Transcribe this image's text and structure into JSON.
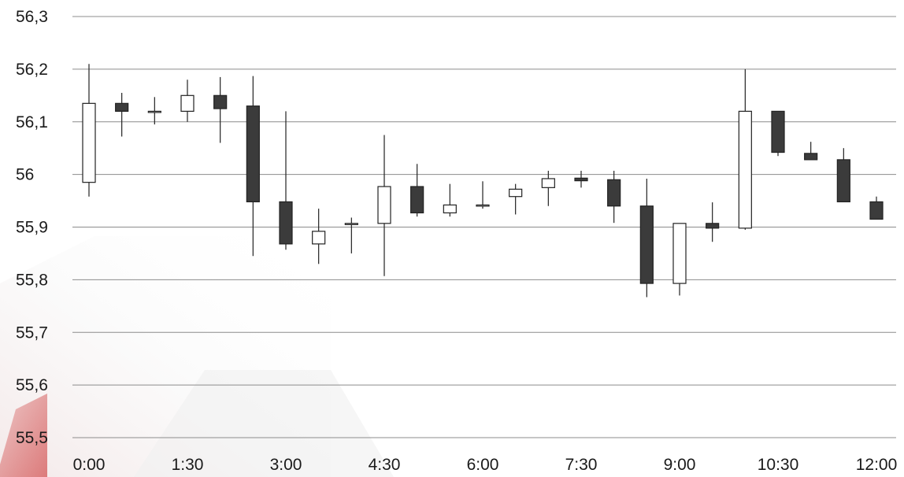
{
  "chart_data": {
    "type": "candlestick",
    "title": "",
    "xlabel": "",
    "ylabel": "",
    "ylim": [
      55.5,
      56.3
    ],
    "y_ticks": [
      "55,5",
      "55,6",
      "55,7",
      "55,8",
      "55,9",
      "56",
      "56,1",
      "56,2",
      "56,3"
    ],
    "x_ticks": [
      "0:00",
      "1:30",
      "3:00",
      "4:30",
      "6:00",
      "7:30",
      "9:00",
      "10:30",
      "12:00"
    ],
    "grid": true,
    "colors": {
      "up": "#ffffff",
      "down": "#3b3b3b",
      "outline": "#222222",
      "grid": "#8c8c8c"
    },
    "candles": [
      {
        "time": "0:00",
        "open": 55.985,
        "high": 56.21,
        "low": 55.958,
        "close": 56.135
      },
      {
        "time": "0:30",
        "open": 56.135,
        "high": 56.155,
        "low": 56.072,
        "close": 56.12
      },
      {
        "time": "1:00",
        "open": 56.12,
        "high": 56.147,
        "low": 56.095,
        "close": 56.12
      },
      {
        "time": "1:30",
        "open": 56.12,
        "high": 56.18,
        "low": 56.1,
        "close": 56.15
      },
      {
        "time": "2:00",
        "open": 56.15,
        "high": 56.185,
        "low": 56.06,
        "close": 56.125
      },
      {
        "time": "2:30",
        "open": 56.13,
        "high": 56.187,
        "low": 55.845,
        "close": 55.948
      },
      {
        "time": "3:00",
        "open": 55.948,
        "high": 56.12,
        "low": 55.857,
        "close": 55.868
      },
      {
        "time": "3:30",
        "open": 55.868,
        "high": 55.935,
        "low": 55.83,
        "close": 55.892
      },
      {
        "time": "4:00",
        "open": 55.905,
        "high": 55.918,
        "low": 55.85,
        "close": 55.907
      },
      {
        "time": "4:30",
        "open": 55.907,
        "high": 56.075,
        "low": 55.807,
        "close": 55.977
      },
      {
        "time": "5:00",
        "open": 55.977,
        "high": 56.02,
        "low": 55.92,
        "close": 55.927
      },
      {
        "time": "5:30",
        "open": 55.927,
        "high": 55.982,
        "low": 55.92,
        "close": 55.942
      },
      {
        "time": "6:00",
        "open": 55.94,
        "high": 55.987,
        "low": 55.935,
        "close": 55.942
      },
      {
        "time": "6:30",
        "open": 55.958,
        "high": 55.982,
        "low": 55.924,
        "close": 55.972
      },
      {
        "time": "7:00",
        "open": 55.975,
        "high": 56.007,
        "low": 55.94,
        "close": 55.992
      },
      {
        "time": "7:30",
        "open": 55.993,
        "high": 56.007,
        "low": 55.975,
        "close": 55.988
      },
      {
        "time": "8:00",
        "open": 55.99,
        "high": 56.007,
        "low": 55.908,
        "close": 55.94
      },
      {
        "time": "8:30",
        "open": 55.94,
        "high": 55.992,
        "low": 55.767,
        "close": 55.793
      },
      {
        "time": "9:00",
        "open": 55.793,
        "high": 55.907,
        "low": 55.77,
        "close": 55.907
      },
      {
        "time": "9:30",
        "open": 55.907,
        "high": 55.947,
        "low": 55.872,
        "close": 55.898
      },
      {
        "time": "10:00",
        "open": 55.898,
        "high": 56.2,
        "low": 55.895,
        "close": 56.12
      },
      {
        "time": "10:30",
        "open": 56.12,
        "high": 56.12,
        "low": 56.035,
        "close": 56.042
      },
      {
        "time": "11:00",
        "open": 56.04,
        "high": 56.062,
        "low": 56.028,
        "close": 56.028
      },
      {
        "time": "11:30",
        "open": 56.028,
        "high": 56.05,
        "low": 55.948,
        "close": 55.948
      },
      {
        "time": "12:00",
        "open": 55.948,
        "high": 55.958,
        "low": 55.915,
        "close": 55.915
      }
    ]
  }
}
